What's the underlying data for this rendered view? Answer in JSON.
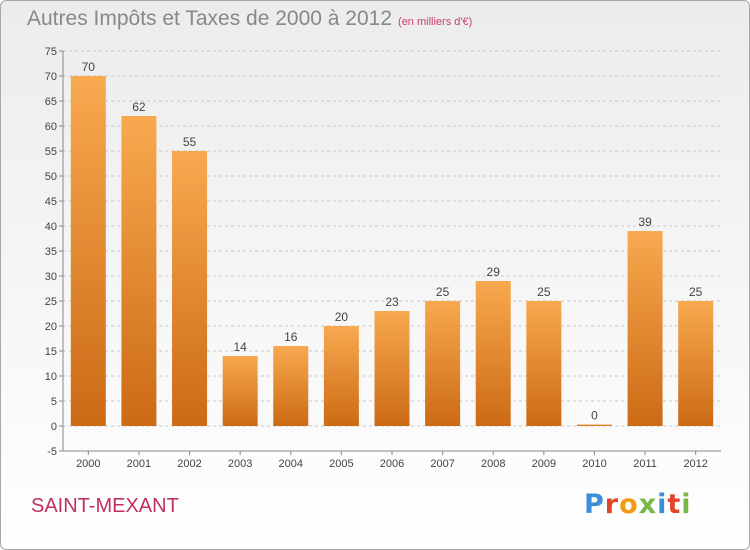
{
  "title": "Autres Impôts et Taxes de 2000 à 2012",
  "subtitle": "(en milliers d'€)",
  "location": "SAINT-MEXANT",
  "logo_text": "Proxiti",
  "colors": {
    "bar_top": "#f8a94f",
    "bar_bottom": "#cc6a16",
    "title": "#888888",
    "accent": "#c03060"
  },
  "chart_data": {
    "type": "bar",
    "title": "Autres Impôts et Taxes de 2000 à 2012",
    "subtitle": "(en milliers d'€)",
    "categories": [
      "2000",
      "2001",
      "2002",
      "2003",
      "2004",
      "2005",
      "2006",
      "2007",
      "2008",
      "2009",
      "2010",
      "2011",
      "2012"
    ],
    "values": [
      70,
      62,
      55,
      14,
      16,
      20,
      23,
      25,
      29,
      25,
      0,
      39,
      25
    ],
    "ylim": [
      -5,
      75
    ],
    "ytick_step": 5,
    "grid": "horizontal-dashed"
  }
}
